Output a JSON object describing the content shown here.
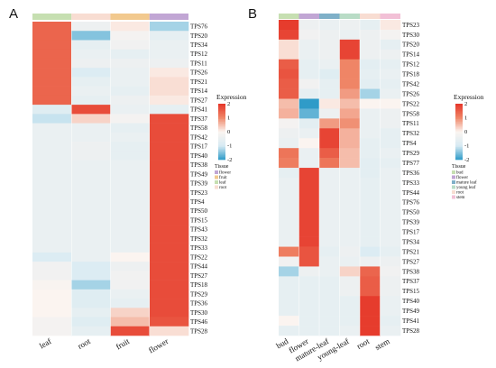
{
  "colors": {
    "scale": [
      "#2f9bc8",
      "#d8ebf3",
      "#fbf4f0",
      "#ef8566",
      "#e53427"
    ],
    "tissue": {
      "flower": "#c1a6d4",
      "fruit": "#f2c98e",
      "leaf": "#c6dfb1",
      "root": "#f8ddd2",
      "bud": "#c6dfb1",
      "mature leaf": "#7fb0c8",
      "young leaf": "#b9dcc6",
      "stem": "#f2c0d6"
    }
  },
  "chart_data": [
    {
      "type": "heatmap",
      "panel": "A",
      "title": "",
      "columns": [
        "leaf",
        "root",
        "fruit",
        "flower"
      ],
      "column_tissue": [
        "leaf",
        "root",
        "fruit",
        "flower"
      ],
      "rows": [
        "TPS76",
        "TPS20",
        "TPS34",
        "TPS12",
        "TPS11",
        "TPS26",
        "TPS21",
        "TPS14",
        "TPS27",
        "TPS41",
        "TPS37",
        "TPS58",
        "TPS42",
        "TPS17",
        "TPS40",
        "TPS38",
        "TPS49",
        "TPS39",
        "TPS23",
        "TPS4",
        "TPS50",
        "TPS15",
        "TPS43",
        "TPS32",
        "TPS33",
        "TPS22",
        "TPS44",
        "TPS27",
        "TPS18",
        "TPS29",
        "TPS36",
        "TPS30",
        "TPS46",
        "TPS28"
      ],
      "values": [
        [
          1.4,
          -0.4,
          0.1,
          -1.3
        ],
        [
          1.4,
          -1.5,
          -0.2,
          -0.6
        ],
        [
          1.4,
          -0.6,
          -0.3,
          -0.5
        ],
        [
          1.4,
          -0.5,
          -0.6,
          -0.5
        ],
        [
          1.4,
          -0.4,
          -0.4,
          -0.4
        ],
        [
          1.4,
          -0.9,
          -0.5,
          0.1
        ],
        [
          1.4,
          -0.6,
          -0.5,
          0.2
        ],
        [
          1.4,
          -0.5,
          -0.6,
          0.2
        ],
        [
          1.4,
          -0.6,
          -0.4,
          0.1
        ],
        [
          -0.8,
          1.7,
          -0.5,
          -0.6
        ],
        [
          -1.1,
          0.3,
          -0.2,
          1.7
        ],
        [
          -0.5,
          -0.5,
          -0.6,
          1.7
        ],
        [
          -0.5,
          -0.5,
          -0.5,
          1.7
        ],
        [
          -0.5,
          -0.4,
          -0.6,
          1.7
        ],
        [
          -0.5,
          -0.4,
          -0.6,
          1.7
        ],
        [
          -0.5,
          -0.5,
          -0.5,
          1.7
        ],
        [
          -0.5,
          -0.5,
          -0.5,
          1.7
        ],
        [
          -0.5,
          -0.5,
          -0.5,
          1.7
        ],
        [
          -0.5,
          -0.5,
          -0.5,
          1.7
        ],
        [
          -0.5,
          -0.5,
          -0.5,
          1.7
        ],
        [
          -0.5,
          -0.5,
          -0.5,
          1.7
        ],
        [
          -0.5,
          -0.5,
          -0.5,
          1.7
        ],
        [
          -0.5,
          -0.5,
          -0.5,
          1.7
        ],
        [
          -0.5,
          -0.5,
          -0.5,
          1.7
        ],
        [
          -0.5,
          -0.5,
          -0.5,
          1.7
        ],
        [
          -0.9,
          -0.5,
          0.0,
          1.7
        ],
        [
          -0.3,
          -0.9,
          -0.4,
          1.7
        ],
        [
          -0.3,
          -0.9,
          -0.3,
          1.7
        ],
        [
          -0.1,
          -1.3,
          -0.3,
          1.7
        ],
        [
          0.0,
          -0.8,
          -0.5,
          1.7
        ],
        [
          0.0,
          -0.8,
          -0.6,
          1.7
        ],
        [
          0.0,
          -0.6,
          0.3,
          1.7
        ],
        [
          -0.2,
          -0.8,
          0.5,
          1.6
        ],
        [
          -0.2,
          -0.6,
          1.7,
          0.2
        ]
      ],
      "xlabel": "",
      "ylabel": ""
    },
    {
      "type": "heatmap",
      "panel": "B",
      "title": "",
      "columns": [
        "bud",
        "flower",
        "mature-leaf",
        "young-leaf",
        "root",
        "stem"
      ],
      "column_tissue": [
        "bud",
        "flower",
        "mature leaf",
        "young leaf",
        "root",
        "stem"
      ],
      "rows": [
        "TPS23",
        "TPS30",
        "TPS20",
        "TPS14",
        "TPS12",
        "TPS18",
        "TPS42",
        "TPS26",
        "TPS22",
        "TPS58",
        "TPS11",
        "TPS32",
        "TPS4",
        "TPS29",
        "TPS77",
        "TPS36",
        "TPS33",
        "TPS44",
        "TPS76",
        "TPS50",
        "TPS39",
        "TPS17",
        "TPS34",
        "TPS21",
        "TPS27",
        "TPS38",
        "TPS37",
        "TPS15",
        "TPS40",
        "TPS49",
        "TPS41",
        "TPS28"
      ],
      "values": [
        [
          1.9,
          -0.4,
          -0.5,
          -0.4,
          -0.6,
          0.1
        ],
        [
          1.8,
          -0.3,
          -0.4,
          -0.5,
          -0.4,
          -0.2
        ],
        [
          0.2,
          -0.5,
          -0.4,
          1.8,
          -0.4,
          -0.6
        ],
        [
          0.2,
          -0.5,
          -0.4,
          1.8,
          -0.4,
          -0.4
        ],
        [
          1.5,
          -0.6,
          -0.5,
          1.0,
          -0.7,
          -0.6
        ],
        [
          1.6,
          -0.6,
          -0.8,
          1.0,
          -0.6,
          -0.5
        ],
        [
          1.5,
          -0.3,
          -0.6,
          1.0,
          -0.7,
          -0.6
        ],
        [
          1.5,
          -0.6,
          -0.6,
          0.8,
          -1.3,
          -0.5
        ],
        [
          0.5,
          -2.0,
          0.1,
          0.5,
          0.0,
          0.0
        ],
        [
          0.6,
          -1.7,
          -0.4,
          0.7,
          -0.5,
          -0.4
        ],
        [
          -0.2,
          -0.7,
          0.8,
          0.9,
          -0.5,
          -0.4
        ],
        [
          -0.4,
          -0.5,
          1.8,
          0.6,
          -0.5,
          -0.6
        ],
        [
          -0.5,
          0.0,
          1.8,
          0.6,
          -0.6,
          -0.6
        ],
        [
          1.2,
          -0.5,
          1.5,
          0.5,
          -0.6,
          -0.5
        ],
        [
          1.1,
          -0.5,
          1.2,
          0.5,
          -0.7,
          -0.6
        ],
        [
          -0.6,
          1.8,
          -0.5,
          -0.5,
          -0.7,
          -0.5
        ],
        [
          -0.5,
          1.8,
          -0.5,
          -0.5,
          -0.6,
          -0.5
        ],
        [
          -0.5,
          1.8,
          -0.5,
          -0.5,
          -0.6,
          -0.5
        ],
        [
          -0.5,
          1.8,
          -0.5,
          -0.5,
          -0.6,
          -0.5
        ],
        [
          -0.5,
          1.8,
          -0.5,
          -0.5,
          -0.6,
          -0.5
        ],
        [
          -0.5,
          1.8,
          -0.5,
          -0.5,
          -0.6,
          -0.5
        ],
        [
          -0.5,
          1.8,
          -0.5,
          -0.5,
          -0.6,
          -0.5
        ],
        [
          -0.5,
          1.8,
          -0.5,
          -0.5,
          -0.6,
          -0.5
        ],
        [
          1.1,
          1.6,
          -0.6,
          -0.4,
          -0.9,
          -0.6
        ],
        [
          -0.3,
          1.6,
          -0.5,
          -0.5,
          -0.4,
          -0.4
        ],
        [
          -1.3,
          -0.4,
          -0.5,
          0.3,
          1.4,
          -0.3
        ],
        [
          -0.6,
          -0.6,
          -0.6,
          -0.4,
          1.5,
          -0.4
        ],
        [
          -0.6,
          -0.6,
          -0.6,
          -0.4,
          1.5,
          -0.4
        ],
        [
          -0.6,
          -0.6,
          -0.6,
          -0.6,
          1.9,
          -0.5
        ],
        [
          -0.6,
          -0.6,
          -0.6,
          -0.6,
          1.9,
          -0.5
        ],
        [
          0.0,
          -0.6,
          -0.6,
          -0.6,
          1.9,
          -0.6
        ],
        [
          -0.6,
          -0.6,
          -0.6,
          -0.5,
          1.9,
          -0.5
        ]
      ],
      "xlabel": "",
      "ylabel": ""
    }
  ],
  "legends": {
    "A": {
      "expression_title": "Expression",
      "ticks": [
        "2",
        "1",
        "0",
        "-1",
        "-2"
      ],
      "tissue_title": "Tissue",
      "tissue_items": [
        "flower",
        "fruit",
        "leaf",
        "root"
      ]
    },
    "B": {
      "expression_title": "Expression",
      "ticks": [
        "2",
        "1",
        "0",
        "-1",
        "-2"
      ],
      "tissue_title": "Tissue",
      "tissue_items": [
        "bud",
        "flower",
        "mature leaf",
        "young leaf",
        "root",
        "stem"
      ]
    }
  }
}
